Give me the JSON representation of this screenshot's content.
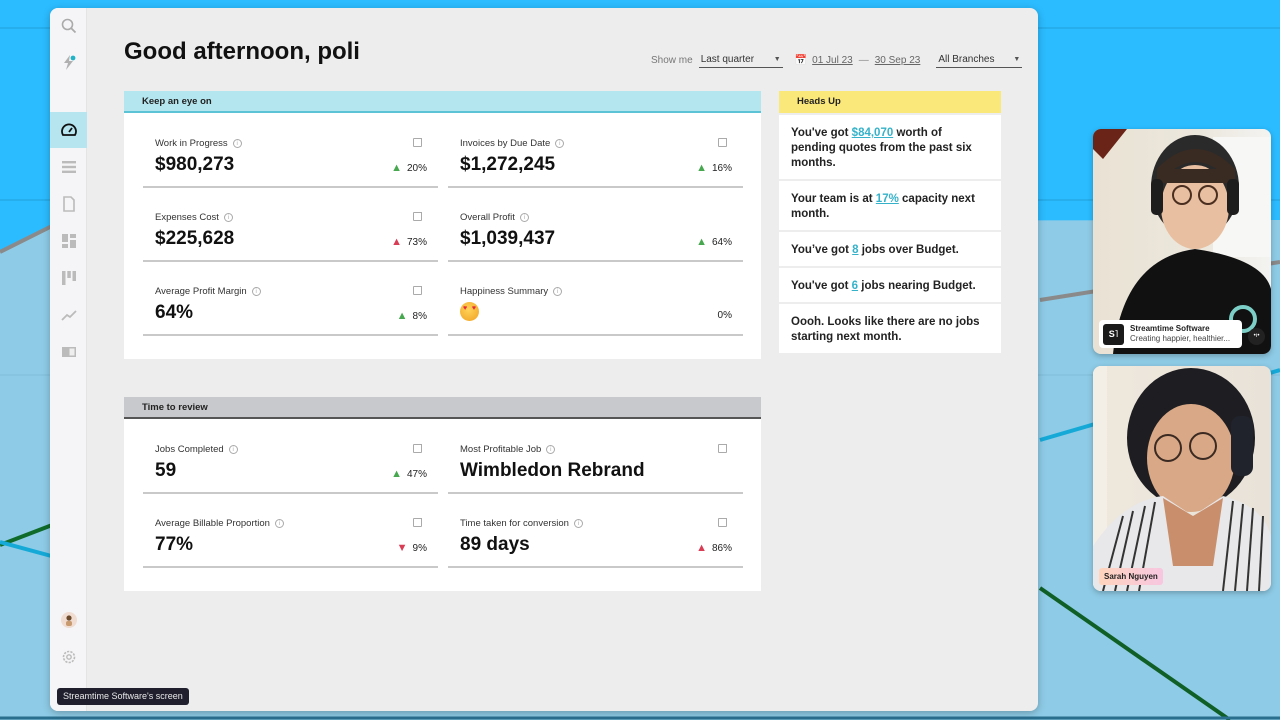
{
  "app": {
    "greeting": "Good afternoon, poli",
    "accent_color": "#5cc3d6"
  },
  "sidebar": {
    "items": [
      {
        "name": "search",
        "icon": "search-icon"
      },
      {
        "name": "activity",
        "icon": "lightning-icon"
      },
      {
        "name": "dashboard",
        "icon": "gauge-icon",
        "active": true
      },
      {
        "name": "jobs",
        "icon": "list-icon"
      },
      {
        "name": "documents",
        "icon": "document-icon"
      },
      {
        "name": "widgets",
        "icon": "grid-icon"
      },
      {
        "name": "kanban",
        "icon": "kanban-icon"
      },
      {
        "name": "reports",
        "icon": "trend-icon"
      },
      {
        "name": "library",
        "icon": "book-icon"
      },
      {
        "name": "profile",
        "icon": "avatar-icon"
      },
      {
        "name": "settings",
        "icon": "gear-icon"
      }
    ]
  },
  "filters": {
    "show_me_label": "Show me",
    "period": "Last quarter",
    "date_from": "01 Jul 23",
    "date_sep": "—",
    "date_to": "30 Sep 23",
    "branch": "All Branches"
  },
  "keep_an_eye_on": {
    "title": "Keep an eye on",
    "metrics": [
      {
        "label": "Work in Progress",
        "value": "$980,273",
        "change": "20%",
        "trend": "up-green"
      },
      {
        "label": "Invoices by Due Date",
        "value": "$1,272,245",
        "change": "16%",
        "trend": "up-green"
      },
      {
        "label": "Expenses Cost",
        "value": "$225,628",
        "change": "73%",
        "trend": "up-red"
      },
      {
        "label": "Overall Profit",
        "value": "$1,039,437",
        "change": "64%",
        "trend": "up-green"
      },
      {
        "label": "Average Profit Margin",
        "value": "64%",
        "change": "8%",
        "trend": "up-green"
      },
      {
        "label": "Happiness Summary",
        "value": "heart-eyes-emoji",
        "change": "0%",
        "trend": "none"
      }
    ]
  },
  "time_to_review": {
    "title": "Time to review",
    "metrics": [
      {
        "label": "Jobs Completed",
        "value": "59",
        "change": "47%",
        "trend": "up-green"
      },
      {
        "label": "Most Profitable Job",
        "value": "Wimbledon Rebrand",
        "change": "",
        "trend": "none"
      },
      {
        "label": "Average Billable Proportion",
        "value": "77%",
        "change": "9%",
        "trend": "down-red"
      },
      {
        "label": "Time taken for conversion",
        "value": "89 days",
        "change": "86%",
        "trend": "up-red"
      }
    ]
  },
  "heads_up": {
    "title": "Heads Up",
    "items": [
      {
        "pre": "You've got ",
        "link": "$84,070",
        "post": " worth of pending quotes from the past six months."
      },
      {
        "pre": "Your team is at ",
        "link": "17%",
        "post": " capacity next month."
      },
      {
        "pre": "You’ve got ",
        "link": "8",
        "post": " jobs over Budget."
      },
      {
        "pre": "You've got ",
        "link": "6",
        "post": " jobs nearing Budget."
      },
      {
        "pre": "Oooh. Looks like there are no jobs starting next month.",
        "link": "",
        "post": ""
      }
    ]
  },
  "tooltip": "Streamtime Software's screen",
  "video_tiles": [
    {
      "company": "Streamtime Software",
      "tagline": "Creating happier, healthier...",
      "logo": "S˥"
    },
    {
      "name": "Sarah Nguyen"
    }
  ],
  "trend_colors": {
    "up-green": "#47a84f",
    "up-red": "#d83d55",
    "down-red": "#d83d55"
  }
}
